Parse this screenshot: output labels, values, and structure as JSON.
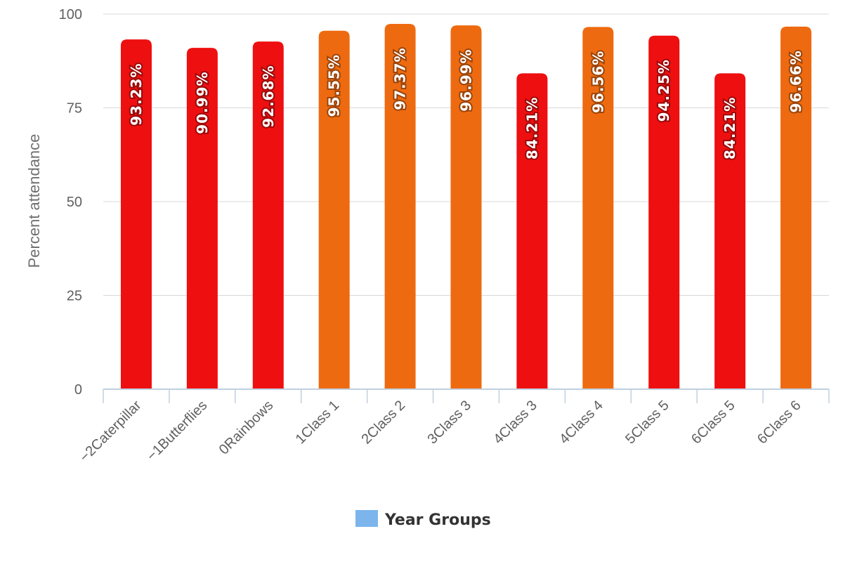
{
  "chart_data": {
    "type": "bar",
    "categories": [
      "−2Caterpillar",
      "−1Butterflies",
      "0Rainbows",
      "1Class 1",
      "2Class 2",
      "3Class 3",
      "4Class 3",
      "4Class 4",
      "5Class 5",
      "6Class 5",
      "6Class 6"
    ],
    "series": [
      {
        "name": "Year Groups",
        "values": [
          93.23,
          90.99,
          92.68,
          95.55,
          97.37,
          96.99,
          84.21,
          96.56,
          94.25,
          84.21,
          96.66
        ],
        "data_labels": [
          "93.23%",
          "90.99%",
          "92.68%",
          "95.55%",
          "97.37%",
          "96.99%",
          "84.21%",
          "96.56%",
          "94.25%",
          "84.21%",
          "96.66%"
        ],
        "colors": [
          "#ee0f10",
          "#ee0f10",
          "#ee0f10",
          "#ee6a10",
          "#ee6a10",
          "#ee6a10",
          "#ee0f10",
          "#ee6a10",
          "#ee0f10",
          "#ee0f10",
          "#ee6a10"
        ]
      }
    ],
    "ylabel": "Percent attendance",
    "xlabel": "",
    "ylim": [
      0,
      100
    ],
    "yticks": [
      "0",
      "25",
      "50",
      "75",
      "100"
    ],
    "grid": true,
    "legend": {
      "position": "bottom-center",
      "items": [
        {
          "label": "Year Groups",
          "color": "#7cb5ec"
        }
      ]
    }
  }
}
